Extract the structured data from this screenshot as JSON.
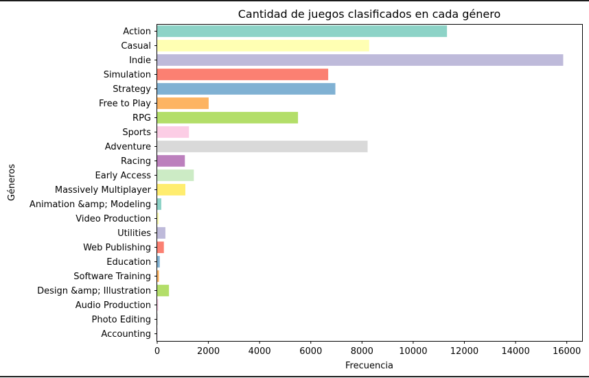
{
  "chart_data": {
    "type": "bar",
    "orientation": "horizontal",
    "title": "Cantidad de juegos clasificados en cada género",
    "xlabel": "Frecuencia",
    "ylabel": "Géneros",
    "xlim": [
      0,
      16600
    ],
    "xticks": [
      0,
      2000,
      4000,
      6000,
      8000,
      10000,
      12000,
      14000,
      16000
    ],
    "grid": false,
    "categories": [
      "Action",
      "Casual",
      "Indie",
      "Simulation",
      "Strategy",
      "Free to Play",
      "RPG",
      "Sports",
      "Adventure",
      "Racing",
      "Early Access",
      "Massively Multiplayer",
      "Animation &amp; Modeling",
      "Video Production",
      "Utilities",
      "Web Publishing",
      "Education",
      "Software Training",
      "Design &amp; Illustration",
      "Audio Production",
      "Photo Editing",
      "Accounting"
    ],
    "values": [
      11320,
      8280,
      15860,
      6680,
      6960,
      2010,
      5500,
      1240,
      8220,
      1080,
      1430,
      1100,
      160,
      60,
      320,
      260,
      100,
      70,
      460,
      40,
      20,
      5
    ],
    "colors": [
      "#8dd3c7",
      "#ffffb3",
      "#bebada",
      "#fb8072",
      "#80b1d3",
      "#fdb462",
      "#b3de69",
      "#fccde5",
      "#d9d9d9",
      "#bc80bd",
      "#ccebc5",
      "#ffed6f",
      "#8dd3c7",
      "#ffffb3",
      "#bebada",
      "#fb8072",
      "#80b1d3",
      "#fdb462",
      "#b3de69",
      "#fccde5",
      "#d9d9d9",
      "#bc80bd"
    ]
  }
}
